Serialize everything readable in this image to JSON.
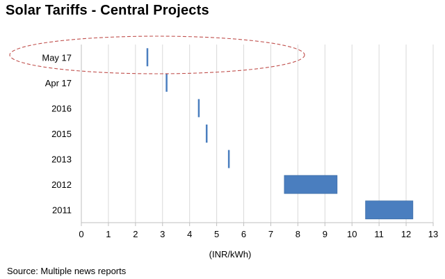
{
  "title": "Solar Tariffs - Central Projects",
  "source": "Source: Multiple news reports",
  "colors": {
    "bar": "#4a7ebf",
    "grid": "#d9d9d9",
    "highlight": "#c0504d"
  },
  "chart_data": {
    "type": "bar",
    "orientation": "horizontal-range",
    "title": "Solar Tariffs - Central Projects",
    "xlabel": "(INR/kWh)",
    "ylabel": "",
    "xlim": [
      0,
      13
    ],
    "xticks": [
      "0",
      "1",
      "2",
      "3",
      "4",
      "5",
      "6",
      "7",
      "8",
      "9",
      "10",
      "11",
      "12",
      "13"
    ],
    "grid": "vertical",
    "categories": [
      "May 17",
      "Apr 17",
      "2016",
      "2015",
      "2013",
      "2012",
      "2011"
    ],
    "series": [
      {
        "ranges": [
          [
            2.44,
            2.44
          ],
          [
            3.15,
            3.15
          ],
          [
            4.34,
            4.34
          ],
          [
            4.63,
            4.63
          ],
          [
            5.45,
            5.45
          ],
          [
            7.5,
            9.45
          ],
          [
            10.5,
            12.25
          ]
        ]
      }
    ],
    "highlight": "May 17"
  }
}
